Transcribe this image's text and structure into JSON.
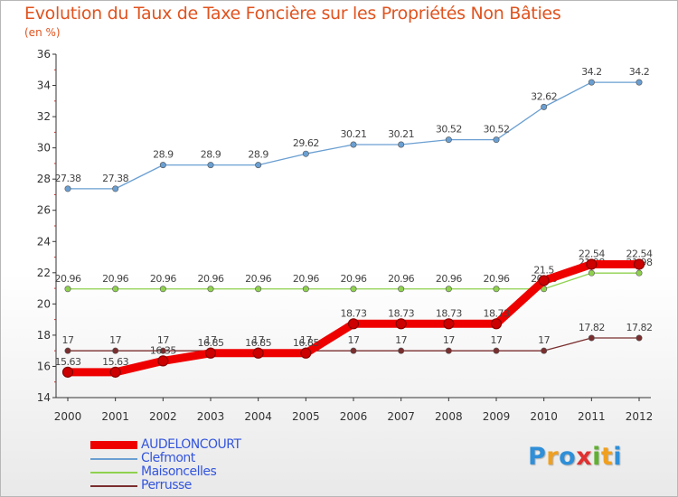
{
  "header": {
    "title": "Evolution du Taux de Taxe Foncière sur les Propriétés Non Bâties",
    "unit": "(en %)"
  },
  "chart_data": {
    "type": "line",
    "x": [
      "2000",
      "2001",
      "2002",
      "2003",
      "2004",
      "2005",
      "2006",
      "2007",
      "2008",
      "2009",
      "2010",
      "2011",
      "2012"
    ],
    "ylim": [
      14,
      36
    ],
    "yticks": [
      "14",
      "16",
      "18",
      "20",
      "22",
      "24",
      "26",
      "28",
      "30",
      "32",
      "34",
      "36"
    ],
    "grid": false,
    "series": [
      {
        "name": "Clefmont",
        "color": "#6a9fd2",
        "values": [
          27.38,
          27.38,
          28.9,
          28.9,
          28.9,
          29.62,
          30.21,
          30.21,
          30.52,
          30.52,
          32.62,
          34.2,
          34.2
        ],
        "labels": [
          "27.38",
          "27.38",
          "28.9",
          "28.9",
          "28.9",
          "29.62",
          "30.21",
          "30.21",
          "30.52",
          "30.52",
          "32.62",
          "34.2",
          "34.2"
        ]
      },
      {
        "name": "Maisoncelles",
        "color": "#8fd14f",
        "values": [
          20.96,
          20.96,
          20.96,
          20.96,
          20.96,
          20.96,
          20.96,
          20.96,
          20.96,
          20.96,
          20.96,
          21.98,
          21.98
        ],
        "labels": [
          "20.96",
          "20.96",
          "20.96",
          "20.96",
          "20.96",
          "20.96",
          "20.96",
          "20.96",
          "20.96",
          "20.96",
          "20.96",
          "21.98",
          "21.98"
        ]
      },
      {
        "name": "Perrusse",
        "color": "#7a2e2e",
        "values": [
          17,
          17,
          17,
          17,
          17,
          17,
          17,
          17,
          17,
          17,
          17,
          17.82,
          17.82
        ],
        "labels": [
          "17",
          "17",
          "17",
          "17",
          "17",
          "17",
          "17",
          "17",
          "17",
          "17",
          "17",
          "17.82",
          "17.82"
        ]
      },
      {
        "name": "AUDELONCOURT",
        "color": "#ee0000",
        "values": [
          15.63,
          15.63,
          16.35,
          16.85,
          16.85,
          16.85,
          18.73,
          18.73,
          18.73,
          18.73,
          21.5,
          22.54,
          22.54
        ],
        "labels": [
          "15.63",
          "15.63",
          "16.35",
          "16.85",
          "16.85",
          "16.85",
          "18.73",
          "18.73",
          "18.73",
          "18.73",
          "21.5",
          "22.54",
          "22.54"
        ]
      }
    ]
  },
  "legend": {
    "items": [
      {
        "label": "AUDELONCOURT",
        "color": "#ee0000",
        "text_color": "#3355dd"
      },
      {
        "label": "Clefmont",
        "color": "#6a9fd2",
        "text_color": "#3355dd"
      },
      {
        "label": "Maisoncelles",
        "color": "#8fd14f",
        "text_color": "#3355dd"
      },
      {
        "label": "Perrusse",
        "color": "#7a2e2e",
        "text_color": "#3355dd"
      }
    ]
  },
  "logo": {
    "letters": [
      "P",
      "r",
      "o",
      "x",
      "i",
      "t",
      "i"
    ],
    "colors": [
      "#2f8fd8",
      "#f0a020",
      "#2f8fd8",
      "#e03030",
      "#60b030",
      "#f0a020",
      "#2f8fd8"
    ]
  }
}
